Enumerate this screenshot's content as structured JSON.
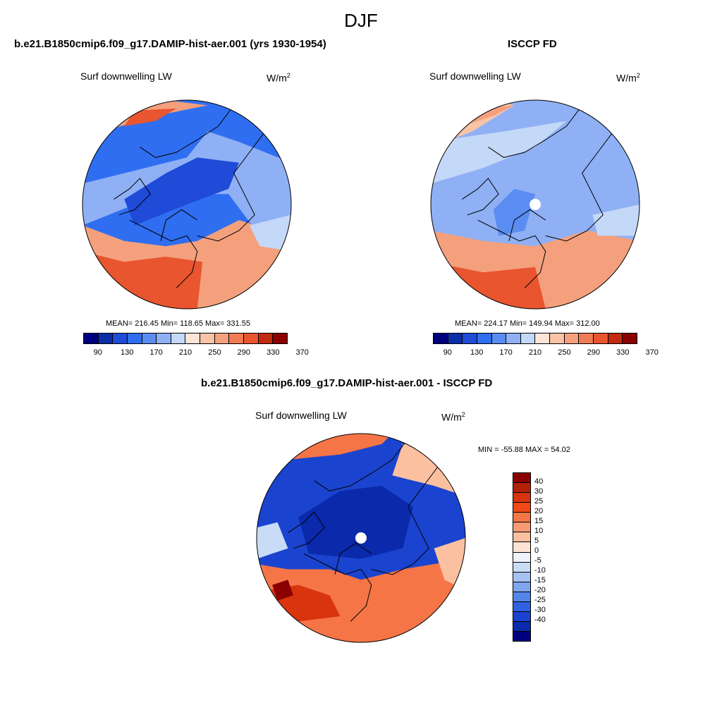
{
  "figure": {
    "title": "DJF",
    "units_base": "W/m",
    "units_sup": "2"
  },
  "panels": [
    {
      "title": "b.e21.B1850cmip6.f09_g17.DAMIP-hist-aer.001 (yrs 1930-1954)",
      "variable": "Surf downwelling LW",
      "stats": "MEAN= 216.45  Min= 118.65  Max= 331.55"
    },
    {
      "title": "ISCCP FD",
      "variable": "Surf downwelling LW",
      "stats": "MEAN= 224.17  Min= 149.94  Max= 312.00"
    }
  ],
  "diff_panel": {
    "title": "b.e21.B1850cmip6.f09_g17.DAMIP-hist-aer.001 - ISCCP FD",
    "variable": "Surf downwelling LW",
    "minmax": "MIN = -55.88 MAX =  54.02"
  },
  "abs_colorbar": {
    "colors": [
      "#00007f",
      "#0b2da8",
      "#1f4bd8",
      "#2f6ef0",
      "#5b8cf2",
      "#8fb0f4",
      "#c4d8f7",
      "#fde6d8",
      "#f8c3a6",
      "#f4a07d",
      "#f07c55",
      "#e8552f",
      "#c42a10",
      "#8b0000"
    ],
    "tick_labels": [
      "90",
      "130",
      "170",
      "210",
      "250",
      "290",
      "330",
      "370"
    ]
  },
  "diff_colorbar": {
    "colors": [
      "#8b0000",
      "#b22209",
      "#d8340e",
      "#f04818",
      "#f57547",
      "#f89b73",
      "#fbc0a0",
      "#fde3d2",
      "#eef3fb",
      "#c9dcf6",
      "#a6c2f2",
      "#7fa6ef",
      "#5486ea",
      "#2f62e0",
      "#1a44cf",
      "#0a2aab",
      "#00007f"
    ],
    "tick_labels": [
      "40",
      "30",
      "25",
      "20",
      "15",
      "10",
      "5",
      "0",
      "-5",
      "-10",
      "-15",
      "-20",
      "-25",
      "-30",
      "-40"
    ]
  },
  "maps": {
    "left": {
      "base": "#2f6ef0",
      "regions": [
        {
          "color": "#8fb0f4",
          "pts": [
            [
              -1,
              0.2
            ],
            [
              -0.4,
              0.35
            ],
            [
              0,
              0.45
            ],
            [
              0.2,
              0.7
            ],
            [
              0.5,
              0.6
            ],
            [
              1,
              0.4
            ],
            [
              1,
              -0.5
            ],
            [
              0.7,
              -0.3
            ],
            [
              0.4,
              0.1
            ],
            [
              0,
              0.1
            ],
            [
              -0.5,
              0
            ],
            [
              -1,
              -0.2
            ]
          ]
        },
        {
          "color": "#1f4bd8",
          "pts": [
            [
              -0.6,
              0.05
            ],
            [
              -0.2,
              0.3
            ],
            [
              0.1,
              0.45
            ],
            [
              0.5,
              0.4
            ],
            [
              0.4,
              0.15
            ],
            [
              0,
              0
            ],
            [
              -0.5,
              -0.2
            ]
          ]
        },
        {
          "color": "#f4a07d",
          "pts": [
            [
              -1,
              -1
            ],
            [
              -1,
              -0.2
            ],
            [
              -0.6,
              -0.35
            ],
            [
              -0.2,
              -0.4
            ],
            [
              0.1,
              -0.35
            ],
            [
              0.5,
              -0.15
            ],
            [
              1,
              -0.3
            ],
            [
              1,
              -1
            ]
          ]
        },
        {
          "color": "#e8552f",
          "pts": [
            [
              -1,
              -1
            ],
            [
              -1,
              -0.45
            ],
            [
              -0.6,
              -0.55
            ],
            [
              -0.2,
              -0.5
            ],
            [
              0.15,
              -0.55
            ],
            [
              0.1,
              -1
            ]
          ]
        },
        {
          "color": "#f4a07d",
          "pts": [
            [
              -0.8,
              0.7
            ],
            [
              -0.3,
              0.85
            ],
            [
              0.2,
              0.95
            ],
            [
              -0.2,
              1
            ],
            [
              -0.9,
              0.8
            ]
          ]
        },
        {
          "color": "#e8552f",
          "pts": [
            [
              -0.6,
              0.75
            ],
            [
              -0.3,
              0.8
            ],
            [
              -0.1,
              0.92
            ],
            [
              -0.5,
              0.9
            ]
          ]
        },
        {
          "color": "#c4d8f7",
          "pts": [
            [
              0.6,
              -0.2
            ],
            [
              1,
              -0.1
            ],
            [
              1,
              -0.45
            ],
            [
              0.7,
              -0.4
            ]
          ]
        }
      ]
    },
    "right": {
      "base": "#8fb0f4",
      "regions": [
        {
          "color": "#c4d8f7",
          "pts": [
            [
              -1,
              0.2
            ],
            [
              -0.5,
              0.35
            ],
            [
              0,
              0.55
            ],
            [
              0.3,
              0.8
            ],
            [
              -0.3,
              0.7
            ],
            [
              -1,
              0.6
            ]
          ]
        },
        {
          "color": "#5b8cf2",
          "pts": [
            [
              -0.4,
              -0.05
            ],
            [
              -0.2,
              0.15
            ],
            [
              0,
              0.1
            ],
            [
              -0.1,
              -0.25
            ],
            [
              -0.35,
              -0.3
            ]
          ]
        },
        {
          "color": "#f4a07d",
          "pts": [
            [
              -1,
              -1
            ],
            [
              -1,
              -0.25
            ],
            [
              -0.5,
              -0.35
            ],
            [
              0,
              -0.4
            ],
            [
              0.5,
              -0.25
            ],
            [
              1,
              -0.35
            ],
            [
              1,
              -1
            ]
          ]
        },
        {
          "color": "#e8552f",
          "pts": [
            [
              -1,
              -1
            ],
            [
              -1,
              -0.55
            ],
            [
              -0.5,
              -0.65
            ],
            [
              0,
              -0.6
            ],
            [
              0.1,
              -1
            ]
          ]
        },
        {
          "color": "#f8c3a6",
          "pts": [
            [
              -1,
              0.55
            ],
            [
              -0.6,
              0.7
            ],
            [
              -0.2,
              0.95
            ],
            [
              -0.4,
              1
            ],
            [
              -1,
              0.9
            ]
          ]
        },
        {
          "color": "#f4a07d",
          "pts": [
            [
              -0.7,
              0.75
            ],
            [
              -0.4,
              0.85
            ],
            [
              -0.2,
              0.95
            ],
            [
              -0.6,
              0.92
            ]
          ]
        },
        {
          "color": "#c4d8f7",
          "pts": [
            [
              0.55,
              -0.1
            ],
            [
              1,
              0
            ],
            [
              1,
              -0.3
            ],
            [
              0.6,
              -0.3
            ]
          ]
        }
      ],
      "hole": true
    },
    "diff": {
      "base": "#1a44cf",
      "regions": [
        {
          "color": "#0a2aab",
          "pts": [
            [
              -0.6,
              0.2
            ],
            [
              -0.2,
              0.45
            ],
            [
              0.2,
              0.5
            ],
            [
              0.5,
              0.3
            ],
            [
              0.4,
              -0.1
            ],
            [
              0,
              -0.2
            ],
            [
              -0.5,
              -0.15
            ]
          ]
        },
        {
          "color": "#f57547",
          "pts": [
            [
              -1,
              -1
            ],
            [
              -1,
              -0.25
            ],
            [
              -0.7,
              -0.3
            ],
            [
              -0.3,
              -0.3
            ],
            [
              0,
              -0.4
            ],
            [
              0.4,
              -0.3
            ],
            [
              1,
              -0.2
            ],
            [
              1,
              -1
            ]
          ]
        },
        {
          "color": "#d8340e",
          "pts": [
            [
              -0.9,
              -0.5
            ],
            [
              -0.6,
              -0.45
            ],
            [
              -0.3,
              -0.55
            ],
            [
              -0.2,
              -0.75
            ],
            [
              -0.6,
              -0.8
            ],
            [
              -0.9,
              -0.7
            ]
          ]
        },
        {
          "color": "#8b0000",
          "pts": [
            [
              -0.85,
              -0.45
            ],
            [
              -0.7,
              -0.4
            ],
            [
              -0.65,
              -0.55
            ],
            [
              -0.8,
              -0.6
            ]
          ]
        },
        {
          "color": "#f57547",
          "pts": [
            [
              -0.7,
              0.75
            ],
            [
              -0.2,
              0.8
            ],
            [
              0.2,
              0.9
            ],
            [
              0.3,
              1
            ],
            [
              -0.6,
              1
            ],
            [
              -0.9,
              0.8
            ]
          ]
        },
        {
          "color": "#fbc0a0",
          "pts": [
            [
              0.3,
              0.6
            ],
            [
              0.7,
              0.5
            ],
            [
              1,
              0.4
            ],
            [
              1,
              0.9
            ],
            [
              0.4,
              0.9
            ]
          ]
        },
        {
          "color": "#c9dcf6",
          "pts": [
            [
              -1,
              0.1
            ],
            [
              -0.8,
              0.15
            ],
            [
              -0.7,
              -0.1
            ],
            [
              -1,
              -0.2
            ]
          ]
        },
        {
          "color": "#fbc0a0",
          "pts": [
            [
              0.7,
              -0.1
            ],
            [
              1,
              0
            ],
            [
              1,
              -0.5
            ],
            [
              0.8,
              -0.4
            ]
          ]
        }
      ],
      "hole": true
    }
  }
}
